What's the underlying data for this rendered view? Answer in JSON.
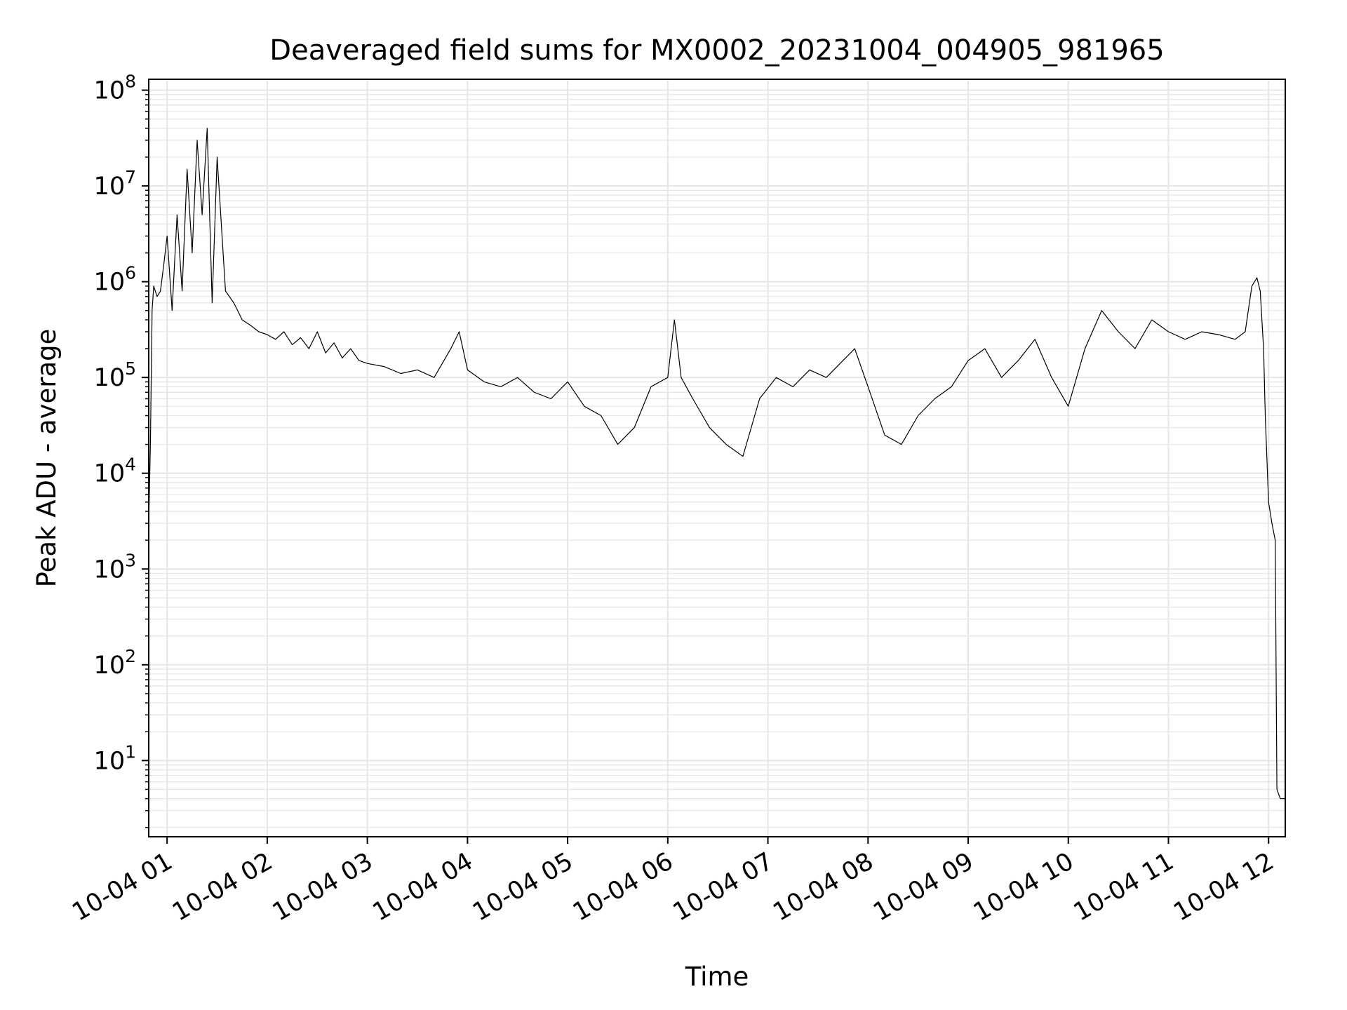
{
  "chart_data": {
    "type": "line",
    "title": "Deaveraged field sums for MX0002_20231004_004905_981965",
    "xlabel": "Time",
    "ylabel": "Peak ADU - average",
    "y_scale": "log",
    "ylim": [
      1.6,
      130000000
    ],
    "xlim": [
      "2023-10-04 00:49",
      "2023-10-04 12:10"
    ],
    "grid": {
      "major": true,
      "minor_y": true,
      "color": "#e6e6e6"
    },
    "line_color": "#000000",
    "x_ticks": [
      {
        "value": "2023-10-04 01:00",
        "label": "10-04 01"
      },
      {
        "value": "2023-10-04 02:00",
        "label": "10-04 02"
      },
      {
        "value": "2023-10-04 03:00",
        "label": "10-04 03"
      },
      {
        "value": "2023-10-04 04:00",
        "label": "10-04 04"
      },
      {
        "value": "2023-10-04 05:00",
        "label": "10-04 05"
      },
      {
        "value": "2023-10-04 06:00",
        "label": "10-04 06"
      },
      {
        "value": "2023-10-04 07:00",
        "label": "10-04 07"
      },
      {
        "value": "2023-10-04 08:00",
        "label": "10-04 08"
      },
      {
        "value": "2023-10-04 09:00",
        "label": "10-04 09"
      },
      {
        "value": "2023-10-04 10:00",
        "label": "10-04 10"
      },
      {
        "value": "2023-10-04 11:00",
        "label": "10-04 11"
      },
      {
        "value": "2023-10-04 12:00",
        "label": "10-04 12"
      }
    ],
    "y_ticks": [
      {
        "value": 10,
        "base": "10",
        "exp": "1"
      },
      {
        "value": 100,
        "base": "10",
        "exp": "2"
      },
      {
        "value": 1000,
        "base": "10",
        "exp": "3"
      },
      {
        "value": 10000,
        "base": "10",
        "exp": "4"
      },
      {
        "value": 100000,
        "base": "10",
        "exp": "5"
      },
      {
        "value": 1000000,
        "base": "10",
        "exp": "6"
      },
      {
        "value": 10000000,
        "base": "10",
        "exp": "7"
      },
      {
        "value": 100000000,
        "base": "10",
        "exp": "8"
      }
    ],
    "series": [
      {
        "x": [
          "2023-10-04 00:49",
          "2023-10-04 00:50",
          "2023-10-04 00:51",
          "2023-10-04 00:52",
          "2023-10-04 00:54",
          "2023-10-04 00:56",
          "2023-10-04 00:58",
          "2023-10-04 01:00",
          "2023-10-04 01:03",
          "2023-10-04 01:06",
          "2023-10-04 01:09",
          "2023-10-04 01:12",
          "2023-10-04 01:15",
          "2023-10-04 01:18",
          "2023-10-04 01:21",
          "2023-10-04 01:24",
          "2023-10-04 01:27",
          "2023-10-04 01:30",
          "2023-10-04 01:35",
          "2023-10-04 01:40",
          "2023-10-04 01:45",
          "2023-10-04 01:50",
          "2023-10-04 01:55",
          "2023-10-04 02:00",
          "2023-10-04 02:05",
          "2023-10-04 02:10",
          "2023-10-04 02:15",
          "2023-10-04 02:20",
          "2023-10-04 02:25",
          "2023-10-04 02:30",
          "2023-10-04 02:35",
          "2023-10-04 02:40",
          "2023-10-04 02:45",
          "2023-10-04 02:50",
          "2023-10-04 02:55",
          "2023-10-04 03:00",
          "2023-10-04 03:10",
          "2023-10-04 03:20",
          "2023-10-04 03:30",
          "2023-10-04 03:40",
          "2023-10-04 03:50",
          "2023-10-04 03:55",
          "2023-10-04 04:00",
          "2023-10-04 04:10",
          "2023-10-04 04:20",
          "2023-10-04 04:30",
          "2023-10-04 04:40",
          "2023-10-04 04:50",
          "2023-10-04 05:00",
          "2023-10-04 05:10",
          "2023-10-04 05:20",
          "2023-10-04 05:30",
          "2023-10-04 05:40",
          "2023-10-04 05:50",
          "2023-10-04 06:00",
          "2023-10-04 06:04",
          "2023-10-04 06:08",
          "2023-10-04 06:15",
          "2023-10-04 06:25",
          "2023-10-04 06:35",
          "2023-10-04 06:45",
          "2023-10-04 06:55",
          "2023-10-04 07:05",
          "2023-10-04 07:15",
          "2023-10-04 07:25",
          "2023-10-04 07:35",
          "2023-10-04 07:45",
          "2023-10-04 07:52",
          "2023-10-04 08:00",
          "2023-10-04 08:10",
          "2023-10-04 08:20",
          "2023-10-04 08:30",
          "2023-10-04 08:40",
          "2023-10-04 08:50",
          "2023-10-04 09:00",
          "2023-10-04 09:10",
          "2023-10-04 09:20",
          "2023-10-04 09:30",
          "2023-10-04 09:40",
          "2023-10-04 09:50",
          "2023-10-04 10:00",
          "2023-10-04 10:10",
          "2023-10-04 10:20",
          "2023-10-04 10:30",
          "2023-10-04 10:40",
          "2023-10-04 10:50",
          "2023-10-04 11:00",
          "2023-10-04 11:10",
          "2023-10-04 11:20",
          "2023-10-04 11:30",
          "2023-10-04 11:40",
          "2023-10-04 11:46",
          "2023-10-04 11:50",
          "2023-10-04 11:53",
          "2023-10-04 11:55",
          "2023-10-04 11:57",
          "2023-10-04 11:58",
          "2023-10-04 12:00",
          "2023-10-04 12:02",
          "2023-10-04 12:04",
          "2023-10-04 12:05",
          "2023-10-04 12:07",
          "2023-10-04 12:08",
          "2023-10-04 12:10"
        ],
        "values": [
          3000,
          20000,
          500000,
          900000,
          700000,
          800000,
          1500000,
          3000000,
          500000,
          5000000,
          800000,
          15000000,
          2000000,
          30000000,
          5000000,
          40000000,
          600000,
          20000000,
          800000,
          600000,
          400000,
          350000,
          300000,
          280000,
          250000,
          300000,
          220000,
          260000,
          200000,
          300000,
          180000,
          230000,
          160000,
          200000,
          150000,
          140000,
          130000,
          110000,
          120000,
          100000,
          200000,
          300000,
          120000,
          90000,
          80000,
          100000,
          70000,
          60000,
          90000,
          50000,
          40000,
          20000,
          30000,
          80000,
          100000,
          400000,
          100000,
          60000,
          30000,
          20000,
          15000,
          60000,
          100000,
          80000,
          120000,
          100000,
          150000,
          200000,
          80000,
          25000,
          20000,
          40000,
          60000,
          80000,
          150000,
          200000,
          100000,
          150000,
          250000,
          100000,
          50000,
          200000,
          500000,
          300000,
          200000,
          400000,
          300000,
          250000,
          300000,
          280000,
          250000,
          300000,
          900000,
          1100000,
          800000,
          200000,
          40000,
          5000,
          3000,
          2000,
          5,
          4,
          4,
          4
        ]
      }
    ]
  }
}
